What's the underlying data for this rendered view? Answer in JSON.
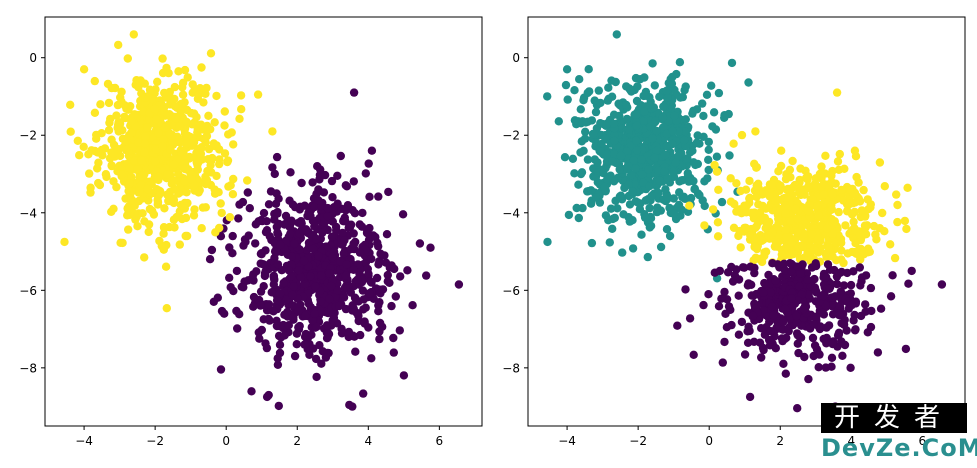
{
  "chart_data": [
    {
      "type": "scatter",
      "title": "",
      "xlabel": "",
      "ylabel": "",
      "xlim": [
        -5.1,
        7.2
      ],
      "ylim": [
        -9.5,
        1.05
      ],
      "xticks": [
        -4,
        -2,
        0,
        2,
        4,
        6
      ],
      "yticks": [
        0,
        -2,
        -4,
        -6,
        -8
      ],
      "grid": false,
      "series": [
        {
          "color": "#440154",
          "center": [
            2.5,
            -5.5
          ],
          "spread": [
            1.05,
            1.05
          ],
          "count": 780,
          "points": [
            [
              6.55,
              -5.85
            ],
            [
              3.6,
              -0.9
            ],
            [
              3.55,
              -9.0
            ],
            [
              1.15,
              -8.75
            ],
            [
              0.3,
              -5.5
            ],
            [
              5.75,
              -4.9
            ],
            [
              4.1,
              -2.4
            ]
          ]
        },
        {
          "color": "#fde725",
          "center": [
            -1.85,
            -2.45
          ],
          "spread": [
            0.9,
            0.95
          ],
          "count": 700,
          "points": [
            [
              -2.6,
              0.6
            ],
            [
              -4.55,
              -4.75
            ],
            [
              -1.1,
              -4.6
            ],
            [
              1.3,
              -1.9
            ],
            [
              -4.0,
              -0.3
            ]
          ]
        }
      ]
    },
    {
      "type": "scatter",
      "title": "",
      "xlabel": "",
      "ylabel": "",
      "xlim": [
        -5.1,
        7.2
      ],
      "ylim": [
        -9.5,
        1.05
      ],
      "xticks": [
        -4,
        -2,
        0,
        2,
        4,
        6
      ],
      "yticks": [
        0,
        -2,
        -4,
        -6,
        -8
      ],
      "grid": false,
      "series": [
        {
          "color": "#21918c",
          "center": [
            -1.85,
            -2.45
          ],
          "spread": [
            0.9,
            0.95
          ],
          "count": 700,
          "points": [
            [
              -2.6,
              0.6
            ],
            [
              -4.55,
              -4.75
            ],
            [
              -1.1,
              -4.6
            ],
            [
              -4.0,
              -0.3
            ]
          ]
        },
        {
          "color": "#fde725",
          "center": [
            2.7,
            -4.2
          ],
          "spread": [
            1.0,
            0.75
          ],
          "ymax": -5.3,
          "count": 520,
          "points": [
            [
              3.6,
              -0.9
            ],
            [
              4.1,
              -2.4
            ],
            [
              5.3,
              -3.8
            ],
            [
              1.3,
              -1.9
            ]
          ]
        },
        {
          "color": "#440154",
          "center": [
            2.5,
            -6.2
          ],
          "spread": [
            1.0,
            0.8
          ],
          "ymin": -5.3,
          "count": 420,
          "points": [
            [
              6.55,
              -5.85
            ],
            [
              3.55,
              -9.0
            ],
            [
              1.15,
              -8.75
            ],
            [
              0.3,
              -5.5
            ],
            [
              5.7,
              -5.5
            ]
          ]
        }
      ]
    }
  ],
  "watermark": {
    "top": "开发者",
    "bottom": "DevZe.CoM"
  }
}
